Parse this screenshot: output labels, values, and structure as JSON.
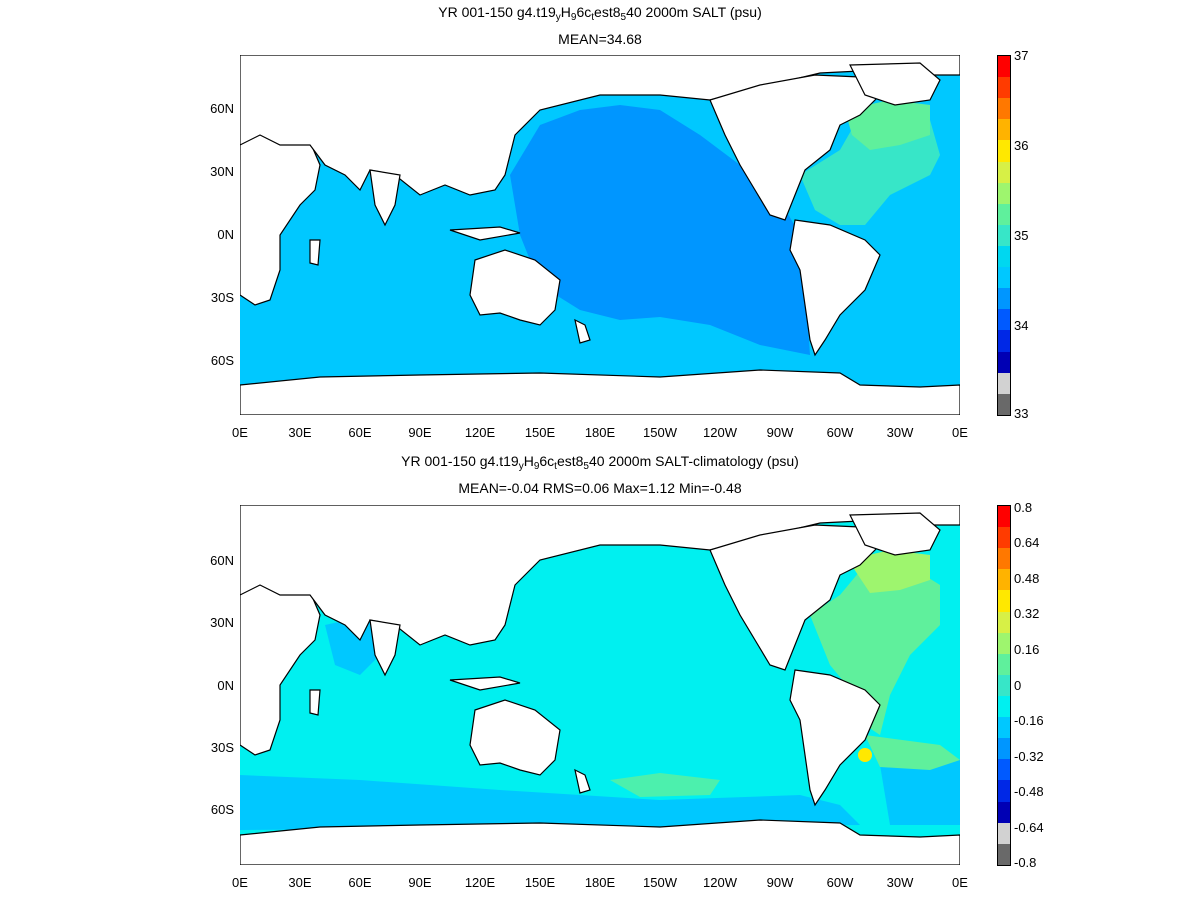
{
  "panels": [
    {
      "title_prefix": "YR 001-150 g4.t19",
      "title_sub1": "y",
      "title_mid1": "H",
      "title_sub2": "9",
      "title_mid2": "6c",
      "title_sub3": "t",
      "title_mid3": "est8",
      "title_sub4": "5",
      "title_suffix": "40 2000m SALT (psu)",
      "stats": "MEAN=34.68",
      "colorbar_labels": [
        "37",
        "36",
        "35",
        "34",
        "33"
      ],
      "colorbar_colors": [
        "#ff0000",
        "#ff3b00",
        "#ff7800",
        "#ffb300",
        "#ffe800",
        "#d7f046",
        "#9ef56e",
        "#5ff09c",
        "#37e6c8",
        "#00d7f0",
        "#00c8ff",
        "#0096ff",
        "#005aff",
        "#0028e6",
        "#0000b4",
        "#d2d2d2",
        "#696969"
      ]
    },
    {
      "title_prefix": "YR 001-150 g4.t19",
      "title_sub1": "y",
      "title_mid1": "H",
      "title_sub2": "9",
      "title_mid2": "6c",
      "title_sub3": "t",
      "title_mid3": "est8",
      "title_sub4": "5",
      "title_suffix": "40 2000m SALT-climatology (psu)",
      "stats": "MEAN=-0.04   RMS=0.06   Max=1.12   Min=-0.48",
      "colorbar_labels": [
        "0.8",
        "0.64",
        "0.48",
        "0.32",
        "0.16",
        "0",
        "-0.16",
        "-0.32",
        "-0.48",
        "-0.64",
        "-0.8"
      ],
      "colorbar_colors": [
        "#ff0000",
        "#ff3b00",
        "#ff7800",
        "#ffb300",
        "#ffe800",
        "#d7f046",
        "#9ef56e",
        "#5ff09c",
        "#37e6c8",
        "#00f0f0",
        "#00c8ff",
        "#0096ff",
        "#005aff",
        "#0028e6",
        "#0000b4",
        "#d2d2d2",
        "#696969"
      ]
    }
  ],
  "lat_labels": [
    "60N",
    "30N",
    "0N",
    "30S",
    "60S"
  ],
  "lon_labels": [
    "0E",
    "30E",
    "60E",
    "90E",
    "120E",
    "150E",
    "180E",
    "150W",
    "120W",
    "90W",
    "60W",
    "30W",
    "0E"
  ],
  "colors": {
    "panel1_ocean": "#00c8ff",
    "panel1_pacific": "#0096ff",
    "panel1_atlantic": "#37e6c8",
    "panel2_ocean": "#00f0f0",
    "panel2_positive": "#5ff09c",
    "panel2_negative": "#00c8ff",
    "land": "#ffffff",
    "coast": "#000000"
  }
}
